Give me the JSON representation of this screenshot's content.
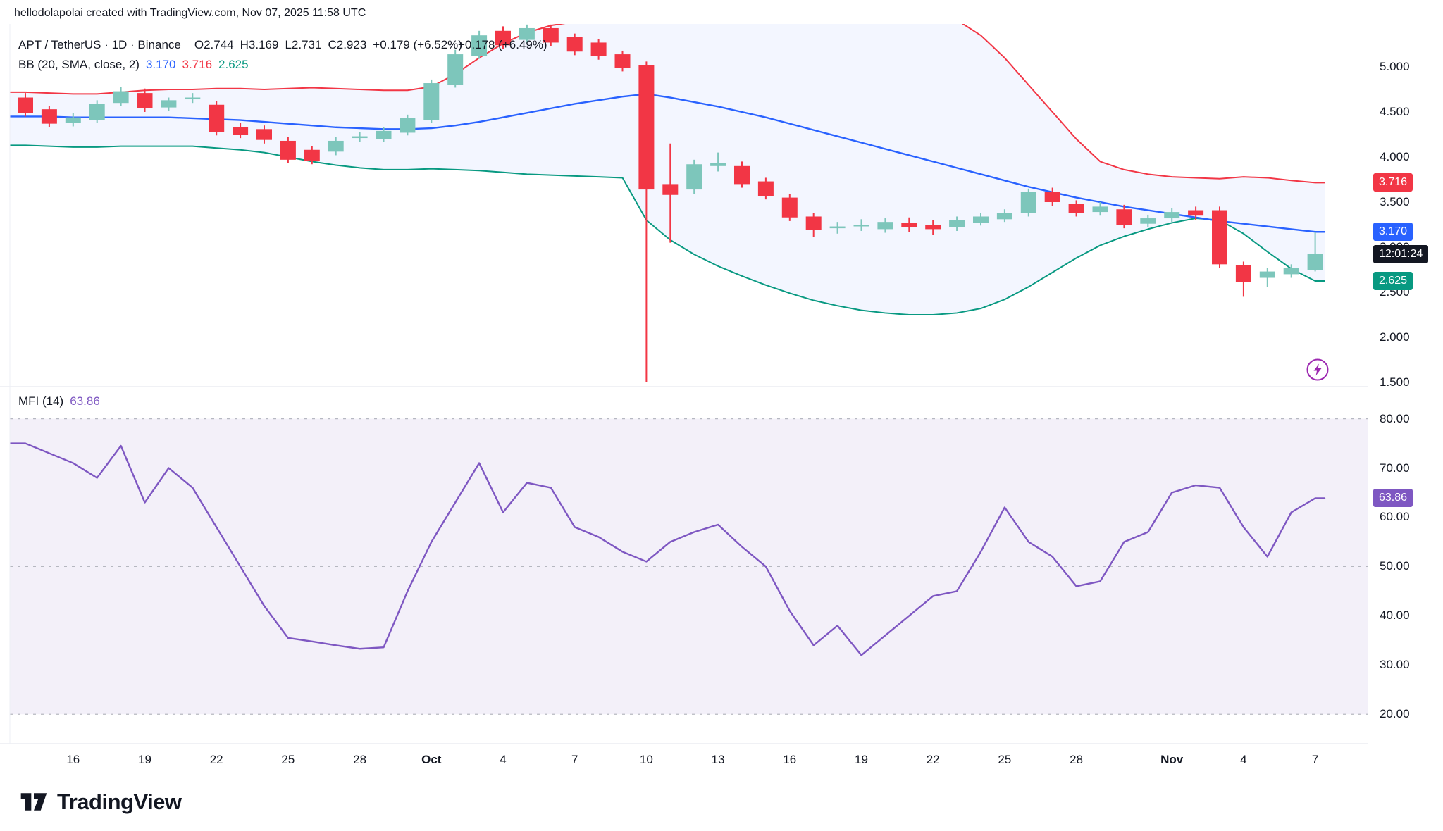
{
  "attribution": "hellodolapolai created with TradingView.com, Nov 07, 2025 11:58 UTC",
  "header": {
    "symbol_line": "APT / TetherUS · 1D · Binance",
    "open": "O2.744",
    "high": "H3.169",
    "low": "L2.731",
    "close": "C2.923",
    "change": "+0.179 (+6.52%)",
    "change_artifact": "+0.178 (+6.49%)"
  },
  "bb_legend": {
    "label": "BB (20, SMA, close, 2)",
    "basis": "3.170",
    "upper": "3.716",
    "lower": "2.625"
  },
  "mfi_legend": {
    "label": "MFI (14)",
    "value": "63.86"
  },
  "price_axis": {
    "ticks": [
      {
        "label": "5.000",
        "value": 5.0
      },
      {
        "label": "4.500",
        "value": 4.5
      },
      {
        "label": "4.000",
        "value": 4.0
      },
      {
        "label": "3.500",
        "value": 3.5
      },
      {
        "label": "3.000",
        "value": 3.0
      },
      {
        "label": "2.500",
        "value": 2.5
      },
      {
        "label": "2.000",
        "value": 2.0
      },
      {
        "label": "1.500",
        "value": 1.5
      }
    ],
    "badges": [
      {
        "name": "bb-upper-badge",
        "label": "3.716",
        "price": 3.716,
        "color": "#f23645"
      },
      {
        "name": "bb-basis-badge",
        "label": "3.170",
        "price": 3.17,
        "color": "#2962ff"
      },
      {
        "name": "countdown-badge",
        "label": "12:01:24",
        "price": 2.923,
        "color": "#131722"
      },
      {
        "name": "bb-lower-badge",
        "label": "2.625",
        "price": 2.625,
        "color": "#089981"
      }
    ]
  },
  "mfi_axis": {
    "ticks": [
      {
        "label": "80.00",
        "value": 80
      },
      {
        "label": "70.00",
        "value": 70
      },
      {
        "label": "60.00",
        "value": 60
      },
      {
        "label": "50.00",
        "value": 50
      },
      {
        "label": "40.00",
        "value": 40
      },
      {
        "label": "30.00",
        "value": 30
      },
      {
        "label": "20.00",
        "value": 20
      }
    ],
    "badge": {
      "name": "mfi-value-badge",
      "label": "63.86",
      "value": 63.86,
      "color": "#7e57c2"
    }
  },
  "time_axis": [
    {
      "label": "16",
      "index": 3,
      "bold": false
    },
    {
      "label": "19",
      "index": 6,
      "bold": false
    },
    {
      "label": "22",
      "index": 9,
      "bold": false
    },
    {
      "label": "25",
      "index": 12,
      "bold": false
    },
    {
      "label": "28",
      "index": 15,
      "bold": false
    },
    {
      "label": "Oct",
      "index": 18,
      "bold": true
    },
    {
      "label": "4",
      "index": 21,
      "bold": false
    },
    {
      "label": "7",
      "index": 24,
      "bold": false
    },
    {
      "label": "10",
      "index": 27,
      "bold": false
    },
    {
      "label": "13",
      "index": 30,
      "bold": false
    },
    {
      "label": "16",
      "index": 33,
      "bold": false
    },
    {
      "label": "19",
      "index": 36,
      "bold": false
    },
    {
      "label": "22",
      "index": 39,
      "bold": false
    },
    {
      "label": "25",
      "index": 42,
      "bold": false
    },
    {
      "label": "28",
      "index": 45,
      "bold": false
    },
    {
      "label": "Nov",
      "index": 49,
      "bold": true
    },
    {
      "label": "4",
      "index": 52,
      "bold": false
    },
    {
      "label": "7",
      "index": 55,
      "bold": false
    }
  ],
  "footer": {
    "brand": "TradingView"
  },
  "colors": {
    "up": "#7dc6bb",
    "down": "#f23645",
    "bb_basis": "#2962ff",
    "bb_upper": "#f23645",
    "bb_lower": "#089981",
    "bb_fill": "rgba(41,98,255,0.055)",
    "mfi": "#7e57c2",
    "mfi_fill": "rgba(126,87,194,0.09)",
    "level": "#a6a9b3",
    "divider": "#e0e3eb"
  },
  "chart_data": {
    "type": "candlestick",
    "title": "APT / TetherUS · 1D · Binance",
    "symbol": "APT/TetherUS",
    "interval": "1D",
    "exchange": "Binance",
    "price_range_visible": [
      1.5,
      5.4
    ],
    "grid": false,
    "dates": [
      "Sep 14",
      "Sep 15",
      "Sep 16",
      "Sep 17",
      "Sep 18",
      "Sep 19",
      "Sep 20",
      "Sep 21",
      "Sep 22",
      "Sep 23",
      "Sep 24",
      "Sep 25",
      "Sep 26",
      "Sep 27",
      "Sep 28",
      "Sep 29",
      "Sep 30",
      "Oct 1",
      "Oct 2",
      "Oct 3",
      "Oct 4",
      "Oct 5",
      "Oct 6",
      "Oct 7",
      "Oct 8",
      "Oct 9",
      "Oct 10",
      "Oct 11",
      "Oct 12",
      "Oct 13",
      "Oct 14",
      "Oct 15",
      "Oct 16",
      "Oct 17",
      "Oct 18",
      "Oct 19",
      "Oct 20",
      "Oct 21",
      "Oct 22",
      "Oct 23",
      "Oct 24",
      "Oct 25",
      "Oct 26",
      "Oct 27",
      "Oct 28",
      "Oct 29",
      "Oct 30",
      "Oct 31",
      "Nov 1",
      "Nov 2",
      "Nov 3",
      "Nov 4",
      "Nov 5",
      "Nov 6",
      "Nov 7"
    ],
    "candles_ohlc": [
      [
        4.66,
        4.71,
        4.45,
        4.49
      ],
      [
        4.53,
        4.57,
        4.33,
        4.37
      ],
      [
        4.38,
        4.49,
        4.34,
        4.44
      ],
      [
        4.41,
        4.63,
        4.38,
        4.59
      ],
      [
        4.6,
        4.78,
        4.57,
        4.73
      ],
      [
        4.71,
        4.76,
        4.5,
        4.54
      ],
      [
        4.55,
        4.66,
        4.51,
        4.63
      ],
      [
        4.66,
        4.71,
        4.6,
        4.66
      ],
      [
        4.58,
        4.62,
        4.24,
        4.28
      ],
      [
        4.33,
        4.38,
        4.21,
        4.25
      ],
      [
        4.31,
        4.35,
        4.15,
        4.19
      ],
      [
        4.18,
        4.22,
        3.93,
        3.97
      ],
      [
        4.08,
        4.12,
        3.92,
        3.96
      ],
      [
        4.06,
        4.22,
        4.02,
        4.18
      ],
      [
        4.22,
        4.28,
        4.17,
        4.23
      ],
      [
        4.2,
        4.33,
        4.17,
        4.29
      ],
      [
        4.27,
        4.47,
        4.24,
        4.43
      ],
      [
        4.41,
        4.86,
        4.38,
        4.82
      ],
      [
        4.8,
        5.19,
        4.77,
        5.14
      ],
      [
        5.12,
        5.4,
        5.09,
        5.35
      ],
      [
        5.4,
        5.45,
        5.2,
        5.24
      ],
      [
        5.3,
        5.47,
        5.27,
        5.43
      ],
      [
        5.43,
        5.47,
        5.23,
        5.27
      ],
      [
        5.33,
        5.37,
        5.13,
        5.17
      ],
      [
        5.27,
        5.31,
        5.08,
        5.12
      ],
      [
        5.14,
        5.18,
        4.95,
        4.99
      ],
      [
        5.02,
        5.06,
        1.5,
        3.64
      ],
      [
        3.7,
        4.15,
        3.05,
        3.58
      ],
      [
        3.64,
        3.97,
        3.59,
        3.92
      ],
      [
        3.9,
        4.05,
        3.84,
        3.93
      ],
      [
        3.9,
        3.95,
        3.66,
        3.7
      ],
      [
        3.73,
        3.77,
        3.53,
        3.57
      ],
      [
        3.55,
        3.59,
        3.29,
        3.33
      ],
      [
        3.34,
        3.38,
        3.11,
        3.19
      ],
      [
        3.21,
        3.28,
        3.15,
        3.23
      ],
      [
        3.24,
        3.31,
        3.18,
        3.25
      ],
      [
        3.2,
        3.32,
        3.16,
        3.28
      ],
      [
        3.27,
        3.33,
        3.17,
        3.22
      ],
      [
        3.25,
        3.3,
        3.14,
        3.2
      ],
      [
        3.22,
        3.34,
        3.18,
        3.3
      ],
      [
        3.27,
        3.38,
        3.24,
        3.34
      ],
      [
        3.31,
        3.42,
        3.28,
        3.38
      ],
      [
        3.38,
        3.65,
        3.34,
        3.61
      ],
      [
        3.61,
        3.66,
        3.46,
        3.5
      ],
      [
        3.48,
        3.52,
        3.34,
        3.38
      ],
      [
        3.39,
        3.5,
        3.35,
        3.45
      ],
      [
        3.42,
        3.47,
        3.21,
        3.25
      ],
      [
        3.26,
        3.36,
        3.22,
        3.32
      ],
      [
        3.32,
        3.43,
        3.28,
        3.39
      ],
      [
        3.41,
        3.45,
        3.3,
        3.35
      ],
      [
        3.41,
        3.45,
        2.77,
        2.81
      ],
      [
        2.8,
        2.84,
        2.45,
        2.61
      ],
      [
        2.66,
        2.77,
        2.56,
        2.73
      ],
      [
        2.7,
        2.81,
        2.66,
        2.77
      ],
      [
        2.744,
        3.169,
        2.731,
        2.923
      ]
    ],
    "bollinger_bands": {
      "settings": "BB (20, SMA, close, 2)",
      "basis": [
        4.45,
        4.45,
        4.44,
        4.44,
        4.44,
        4.44,
        4.44,
        4.43,
        4.42,
        4.41,
        4.39,
        4.37,
        4.35,
        4.33,
        4.32,
        4.31,
        4.31,
        4.32,
        4.35,
        4.39,
        4.44,
        4.49,
        4.54,
        4.59,
        4.63,
        4.67,
        4.7,
        4.66,
        4.61,
        4.56,
        4.5,
        4.44,
        4.37,
        4.3,
        4.23,
        4.16,
        4.09,
        4.02,
        3.95,
        3.88,
        3.81,
        3.74,
        3.67,
        3.61,
        3.55,
        3.5,
        3.45,
        3.41,
        3.37,
        3.33,
        3.29,
        3.26,
        3.23,
        3.2,
        3.17
      ],
      "upper": [
        4.72,
        4.71,
        4.7,
        4.7,
        4.72,
        4.74,
        4.75,
        4.75,
        4.76,
        4.76,
        4.75,
        4.76,
        4.77,
        4.76,
        4.75,
        4.74,
        4.74,
        4.78,
        4.92,
        5.1,
        5.26,
        5.38,
        5.46,
        5.5,
        5.53,
        5.56,
        6.4,
        6.55,
        6.6,
        6.62,
        6.6,
        6.55,
        6.48,
        6.4,
        6.3,
        6.18,
        6.04,
        5.88,
        5.7,
        5.52,
        5.35,
        5.1,
        4.8,
        4.5,
        4.2,
        3.95,
        3.86,
        3.81,
        3.78,
        3.77,
        3.76,
        3.78,
        3.77,
        3.74,
        3.716
      ],
      "lower": [
        4.13,
        4.12,
        4.11,
        4.11,
        4.12,
        4.12,
        4.12,
        4.12,
        4.1,
        4.08,
        4.05,
        4.0,
        3.95,
        3.91,
        3.88,
        3.86,
        3.86,
        3.87,
        3.86,
        3.85,
        3.83,
        3.81,
        3.8,
        3.79,
        3.78,
        3.77,
        3.3,
        3.08,
        2.92,
        2.79,
        2.68,
        2.58,
        2.49,
        2.41,
        2.35,
        2.3,
        2.27,
        2.25,
        2.25,
        2.27,
        2.32,
        2.42,
        2.56,
        2.72,
        2.88,
        3.02,
        3.12,
        3.2,
        3.27,
        3.32,
        3.3,
        3.15,
        2.95,
        2.76,
        2.625
      ]
    },
    "indicator": {
      "type": "line",
      "name": "MFI (14)",
      "range": [
        20,
        80
      ],
      "levels": [
        80,
        50,
        20
      ],
      "current": 63.86,
      "values": [
        75,
        73,
        71,
        68,
        74.5,
        63,
        70,
        66,
        58,
        50,
        42,
        35.5,
        34.8,
        34,
        33.3,
        33.6,
        45,
        55,
        63,
        71,
        61,
        67,
        66,
        58,
        56,
        53,
        51,
        55,
        57,
        58.5,
        54,
        50,
        41,
        34,
        38,
        32,
        36,
        40,
        44,
        45,
        53,
        62,
        55,
        52,
        46,
        47,
        55,
        57,
        65,
        66.5,
        66,
        58,
        52,
        61,
        63.86
      ]
    }
  }
}
